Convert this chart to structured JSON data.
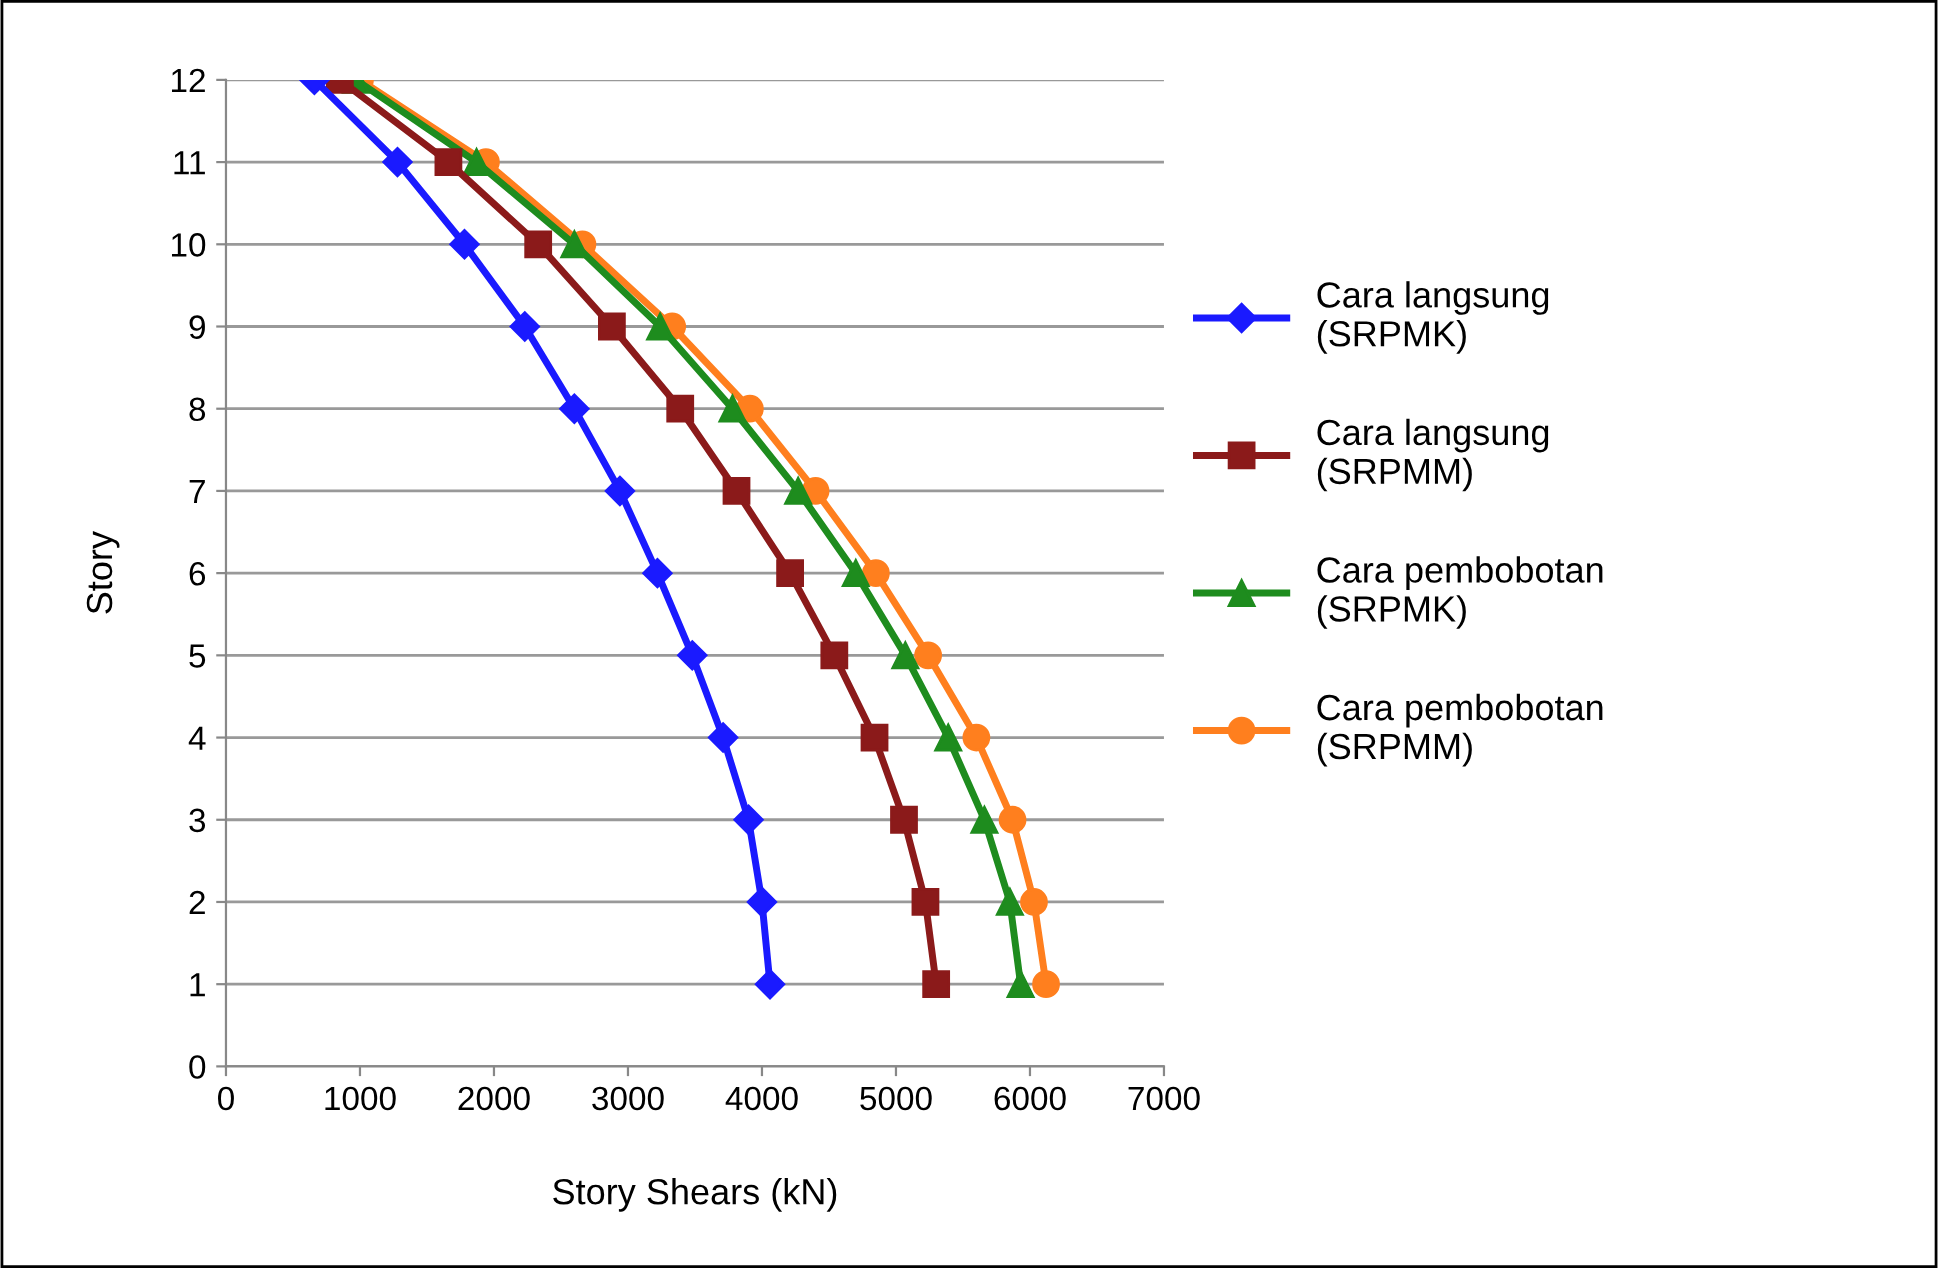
{
  "chart_data": {
    "type": "line",
    "orientation": "horizontal",
    "xlabel": "Story Shears (kN)",
    "ylabel": "Story",
    "categories": [
      "12",
      "11",
      "10",
      "9",
      "8",
      "7",
      "6",
      "5",
      "4",
      "3",
      "2",
      "1",
      "0"
    ],
    "series": [
      {
        "name": "Cara langsung\n(SRPMK)",
        "color": "#1a1aff",
        "marker": "diamond",
        "values": [
          660,
          1280,
          1780,
          2230,
          2600,
          2940,
          3220,
          3480,
          3710,
          3900,
          4000,
          4060,
          null
        ]
      },
      {
        "name": "Cara langsung\n(SRPMM)",
        "color": "#8b1a1a",
        "marker": "square",
        "values": [
          850,
          1660,
          2330,
          2880,
          3390,
          3810,
          4210,
          4540,
          4840,
          5060,
          5220,
          5300,
          null
        ]
      },
      {
        "name": "Cara pembobotan\n(SRPMK)",
        "color": "#1e8c1e",
        "marker": "triangle",
        "values": [
          970,
          1870,
          2600,
          3240,
          3780,
          4270,
          4700,
          5070,
          5390,
          5660,
          5850,
          5930,
          null
        ]
      },
      {
        "name": "Cara pembobotan\n(SRPMM)",
        "color": "#ff7f1e",
        "marker": "circle",
        "values": [
          1000,
          1940,
          2660,
          3330,
          3910,
          4400,
          4850,
          5240,
          5600,
          5870,
          6030,
          6120,
          null
        ]
      }
    ],
    "xlim": [
      0,
      7000
    ],
    "xticks": [
      0,
      1000,
      2000,
      3000,
      4000,
      5000,
      6000,
      7000
    ],
    "grid": "y",
    "legend": "right",
    "line_style": "solid"
  }
}
